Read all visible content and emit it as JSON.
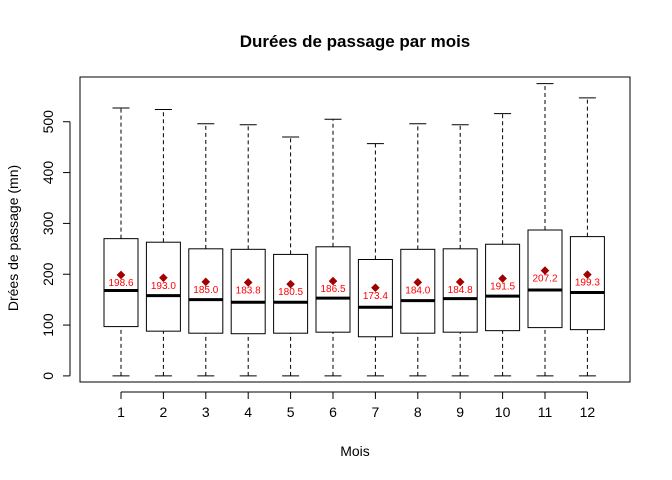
{
  "chart_data": {
    "type": "boxplot",
    "title": "Durées de passage par mois",
    "xlabel": "Mois",
    "ylabel": "Drées de passage (mn)",
    "categories": [
      "1",
      "2",
      "3",
      "4",
      "5",
      "6",
      "7",
      "8",
      "9",
      "10",
      "11",
      "12"
    ],
    "ylim": [
      -12,
      588
    ],
    "yticks": [
      0,
      100,
      200,
      300,
      400,
      500
    ],
    "ytick_labels": [
      "0",
      "100",
      "200",
      "300",
      "400",
      "500"
    ],
    "boxes": [
      {
        "min": 0,
        "q1": 97,
        "median": 168,
        "q3": 270,
        "max": 527
      },
      {
        "min": 0,
        "q1": 88,
        "median": 158,
        "q3": 263,
        "max": 524
      },
      {
        "min": 0,
        "q1": 84,
        "median": 150,
        "q3": 250,
        "max": 496
      },
      {
        "min": 0,
        "q1": 83,
        "median": 145,
        "q3": 249,
        "max": 494
      },
      {
        "min": 0,
        "q1": 84,
        "median": 145,
        "q3": 239,
        "max": 470
      },
      {
        "min": 0,
        "q1": 86,
        "median": 153,
        "q3": 254,
        "max": 505
      },
      {
        "min": 0,
        "q1": 77,
        "median": 135,
        "q3": 229,
        "max": 457
      },
      {
        "min": 0,
        "q1": 84,
        "median": 148,
        "q3": 249,
        "max": 496
      },
      {
        "min": 0,
        "q1": 86,
        "median": 152,
        "q3": 250,
        "max": 494
      },
      {
        "min": 0,
        "q1": 89,
        "median": 157,
        "q3": 259,
        "max": 516
      },
      {
        "min": 0,
        "q1": 95,
        "median": 169,
        "q3": 287,
        "max": 575
      },
      {
        "min": 0,
        "q1": 91,
        "median": 164,
        "q3": 274,
        "max": 547
      }
    ],
    "means": [
      198.6,
      193.0,
      185.0,
      183.8,
      180.5,
      186.5,
      173.4,
      184.0,
      184.8,
      191.5,
      207.2,
      199.3
    ],
    "mean_labels": [
      "198.6",
      "193.0",
      "185.0",
      "183.8",
      "180.5",
      "186.5",
      "173.4",
      "184.0",
      "184.8",
      "191.5",
      "207.2",
      "199.3"
    ],
    "colors": {
      "box_fill": "#ffffff",
      "box_stroke": "#000000",
      "median": "#000000",
      "mean_marker": "#a00000",
      "mean_label": "#ff0000"
    },
    "grid": false,
    "legend": "none"
  }
}
